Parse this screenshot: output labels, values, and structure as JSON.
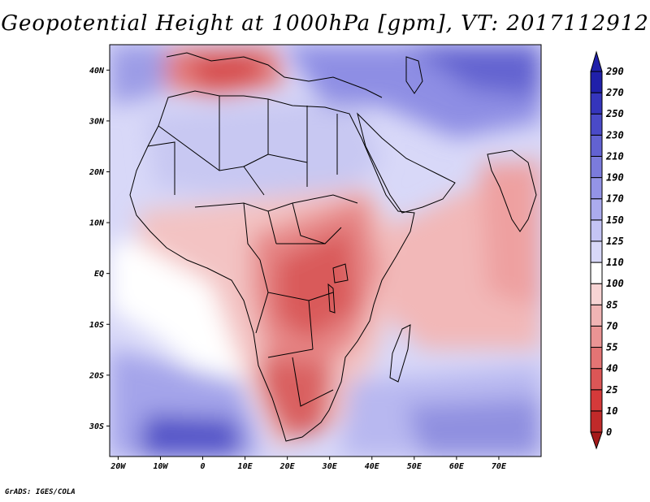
{
  "title": "Geopotential Height at 1000hPa [gpm], VT: 2017112912",
  "credit": "GrADS: IGES/COLA",
  "x_ticks": [
    {
      "label": "20W",
      "lon": -20
    },
    {
      "label": "10W",
      "lon": -10
    },
    {
      "label": "0",
      "lon": 0
    },
    {
      "label": "10E",
      "lon": 10
    },
    {
      "label": "20E",
      "lon": 20
    },
    {
      "label": "30E",
      "lon": 30
    },
    {
      "label": "40E",
      "lon": 40
    },
    {
      "label": "50E",
      "lon": 50
    },
    {
      "label": "60E",
      "lon": 60
    },
    {
      "label": "70E",
      "lon": 70
    }
  ],
  "y_ticks": [
    {
      "label": "40N",
      "lat": 40
    },
    {
      "label": "30N",
      "lat": 30
    },
    {
      "label": "20N",
      "lat": 20
    },
    {
      "label": "10N",
      "lat": 10
    },
    {
      "label": "EQ",
      "lat": 0
    },
    {
      "label": "10S",
      "lat": -10
    },
    {
      "label": "20S",
      "lat": -20
    },
    {
      "label": "30S",
      "lat": -30
    }
  ],
  "colorbar": {
    "levels": [
      "0",
      "10",
      "25",
      "40",
      "55",
      "70",
      "85",
      "100",
      "110",
      "125",
      "150",
      "170",
      "190",
      "210",
      "230",
      "250",
      "270",
      "290"
    ],
    "colors": [
      "#a51a1a",
      "#c12a2a",
      "#d53a3a",
      "#dc5656",
      "#e37474",
      "#ea9494",
      "#f0b4b4",
      "#f7d4d4",
      "#ffffff",
      "#d8d8f8",
      "#c4c4f4",
      "#ababee",
      "#9494e6",
      "#7b7bdc",
      "#6262d2",
      "#4a4ac8",
      "#3535bc",
      "#2020aa"
    ]
  },
  "map_extent": {
    "lon_min": -22,
    "lon_max": 80,
    "lat_min": -36,
    "lat_max": 45
  }
}
